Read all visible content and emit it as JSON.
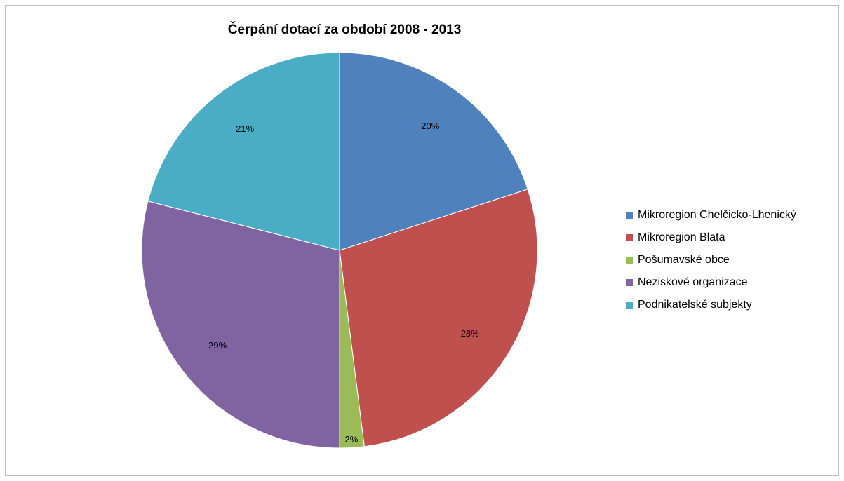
{
  "chart_data": {
    "type": "pie",
    "title": "Čerpání dotací za období 2008 - 2013",
    "legend_position": "right",
    "slices": [
      {
        "name": "Mikroregion Chelčicko-Lhenický",
        "value": 20,
        "label": "20%",
        "color": "#4f81bd"
      },
      {
        "name": "Mikroregion Blata",
        "value": 28,
        "label": "28%",
        "color": "#c0504d"
      },
      {
        "name": "Pošumavské obce",
        "value": 2,
        "label": "2%",
        "color": "#9bbb59"
      },
      {
        "name": "Neziskové organizace",
        "value": 29,
        "label": "29%",
        "color": "#8064a2"
      },
      {
        "name": "Podnikatelské subjekty",
        "value": 21,
        "label": "21%",
        "color": "#4bacc6"
      }
    ]
  }
}
